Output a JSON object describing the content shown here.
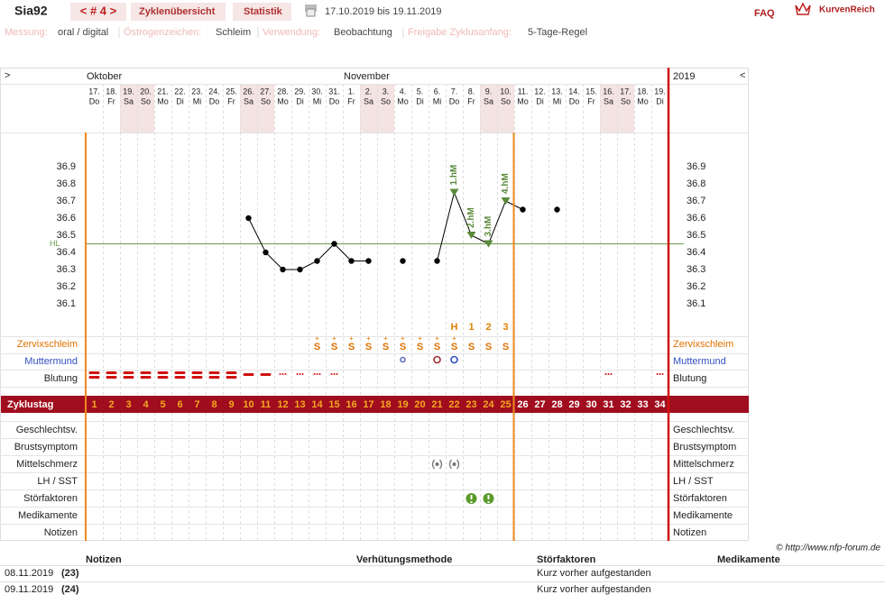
{
  "header": {
    "user": "Sia92",
    "cycle_nav": "< # 4 >",
    "tabs": [
      "Zyklenübersicht",
      "Statistik"
    ],
    "period": "17.10.2019 bis 19.11.2019",
    "faq": "FAQ",
    "brand": "KurvenReich"
  },
  "settings": [
    {
      "label": "Messung:",
      "value": "oral / digital"
    },
    {
      "label": "Östrogenzeichen:",
      "value": "Schleim"
    },
    {
      "label": "Verwendung:",
      "value": "Beobachtung"
    },
    {
      "label": "Freigabe Zyklusanfang:",
      "value": "5-Tage-Regel"
    }
  ],
  "calendar": {
    "left_arrow": ">",
    "right_arrow": "<",
    "months": [
      "Oktober",
      "November"
    ],
    "year": "2019",
    "dates": [
      "17.",
      "18.",
      "19.",
      "20.",
      "21.",
      "22.",
      "23.",
      "24.",
      "25.",
      "26.",
      "27.",
      "28.",
      "29.",
      "30.",
      "31.",
      "1.",
      "2.",
      "3.",
      "4.",
      "5.",
      "6.",
      "7.",
      "8.",
      "9.",
      "10.",
      "11.",
      "12.",
      "13.",
      "14.",
      "15.",
      "16.",
      "17.",
      "18.",
      "19."
    ],
    "weekdays": [
      "Do",
      "Fr",
      "Sa",
      "So",
      "Mo",
      "Di",
      "Mi",
      "Do",
      "Fr",
      "Sa",
      "So",
      "Mo",
      "Di",
      "Mi",
      "Do",
      "Fr",
      "Sa",
      "So",
      "Mo",
      "Di",
      "Mi",
      "Do",
      "Fr",
      "Sa",
      "So",
      "Mo",
      "Di",
      "Mi",
      "Do",
      "Fr",
      "Sa",
      "So",
      "Mo",
      "Di"
    ]
  },
  "temperature": {
    "values": [
      null,
      null,
      null,
      null,
      null,
      null,
      null,
      null,
      null,
      36.6,
      36.4,
      36.3,
      36.3,
      36.35,
      36.45,
      36.35,
      36.35,
      null,
      36.35,
      null,
      36.35,
      36.75,
      36.5,
      36.45,
      36.7,
      36.65,
      null,
      36.65,
      null,
      null,
      null,
      null,
      null,
      null
    ],
    "yticks": [
      36.9,
      36.8,
      36.7,
      36.6,
      36.5,
      36.4,
      36.3,
      36.2,
      36.1
    ],
    "hl": {
      "label": "HL",
      "value": 36.45
    },
    "hm_labels": [
      null,
      null,
      null,
      null,
      null,
      null,
      null,
      null,
      null,
      null,
      null,
      null,
      null,
      null,
      null,
      null,
      null,
      null,
      null,
      null,
      null,
      "1.hM",
      "2.hM",
      "3.hM",
      "4.hM",
      null,
      null,
      null,
      null,
      null,
      null,
      null,
      null,
      null
    ],
    "peak_labels": [
      null,
      null,
      null,
      null,
      null,
      null,
      null,
      null,
      null,
      null,
      null,
      null,
      null,
      null,
      null,
      null,
      null,
      null,
      null,
      null,
      null,
      "H",
      "1",
      "2",
      "3",
      null,
      null,
      null,
      null,
      null,
      null,
      null,
      null,
      null
    ]
  },
  "rows": {
    "zervixschleim": "Zervixschleim",
    "muttermund": "Muttermund",
    "blutung": "Blutung"
  },
  "zervix": {
    "plus": [
      null,
      null,
      null,
      null,
      null,
      null,
      null,
      null,
      null,
      null,
      null,
      null,
      null,
      "+",
      "+",
      "+",
      "+",
      "+",
      "+",
      "+",
      "+",
      "+",
      null,
      null,
      null,
      null,
      null,
      null,
      null,
      null,
      null,
      null,
      null,
      null
    ],
    "symbols": [
      null,
      null,
      null,
      null,
      null,
      null,
      null,
      null,
      null,
      null,
      null,
      null,
      null,
      "S",
      "S",
      "S",
      "S",
      "S",
      "S",
      "S",
      "S",
      "S",
      "S",
      "S",
      "S",
      null,
      null,
      null,
      null,
      null,
      null,
      null,
      null,
      null
    ]
  },
  "cycle_days": {
    "label": "Zyklustag",
    "values": [
      1,
      2,
      3,
      4,
      5,
      6,
      7,
      8,
      9,
      10,
      11,
      12,
      13,
      14,
      15,
      16,
      17,
      18,
      19,
      20,
      21,
      22,
      23,
      24,
      25,
      26,
      27,
      28,
      29,
      30,
      31,
      32,
      33,
      34
    ]
  },
  "lower_rows": [
    "Geschlechtsv.",
    "Brustsymptom",
    "Mittelschmerz",
    "LH / SST",
    "Störfaktoren",
    "Medikamente",
    "Notizen"
  ],
  "footer": {
    "copyright": "© http://www.nfp-forum.de",
    "columns": [
      "Notizen",
      "Verhütungsmethode",
      "Störfaktoren",
      "Medikamente"
    ],
    "rows": [
      {
        "date": "08.11.2019",
        "day": "(23)",
        "stoerfaktoren": "Kurz vorher aufgestanden"
      },
      {
        "date": "09.11.2019",
        "day": "(24)",
        "stoerfaktoren": "Kurz vorher aufgestanden"
      }
    ]
  }
}
